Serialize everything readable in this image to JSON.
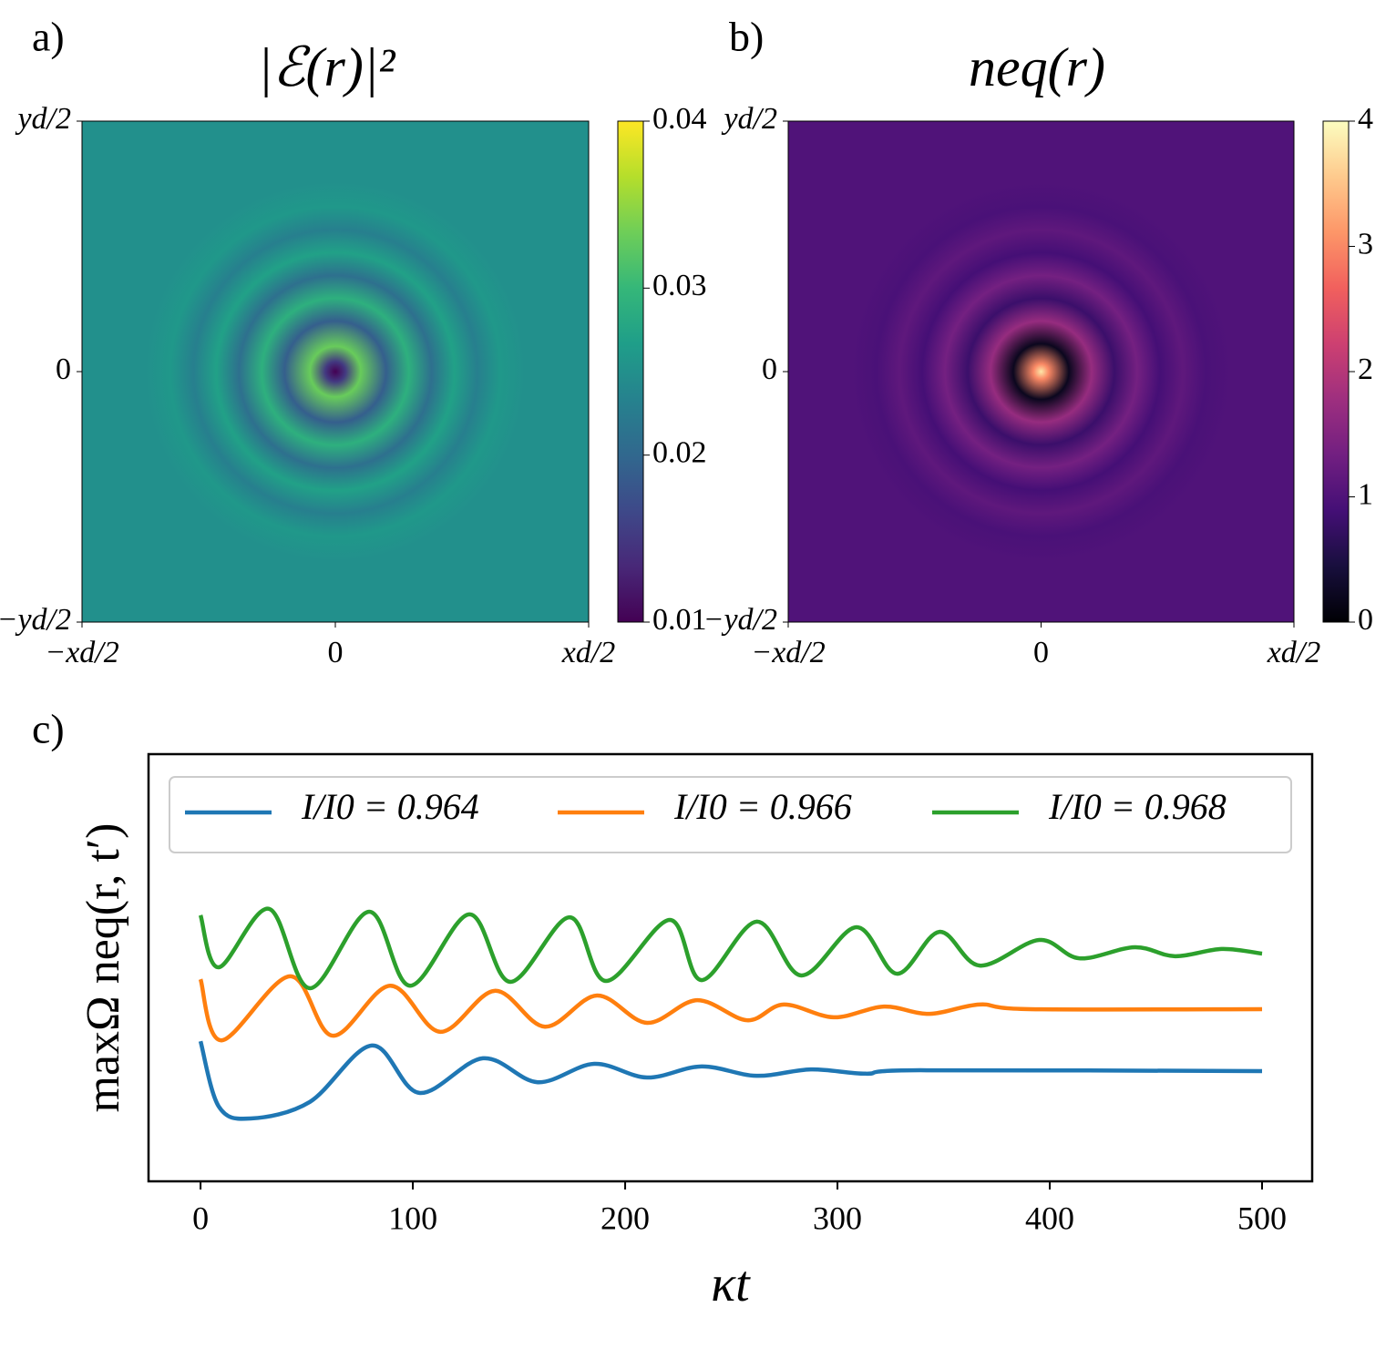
{
  "chart_data": [
    {
      "type": "heatmap",
      "panel_label": "a)",
      "title": "|ℰ(r)|²",
      "xlim": [
        -1,
        1
      ],
      "xticks": [
        {
          "value": -1,
          "label": "−xd/2"
        },
        0,
        {
          "value": 1,
          "label": "xd/2"
        }
      ],
      "ylim": [
        -1,
        1
      ],
      "yticks": [
        {
          "value": -1,
          "label": "−yd/2"
        },
        0,
        {
          "value": 1,
          "label": "yd/2"
        }
      ],
      "colorbar_lim": [
        0.01,
        0.04
      ],
      "colorbar_ticks": [
        0.01,
        0.02,
        0.03,
        0.04
      ],
      "colormap": [
        "#440154",
        "#482878",
        "#3e4989",
        "#31688e",
        "#26828e",
        "#1f9e89",
        "#35b779",
        "#6ece58",
        "#b5de2b",
        "#fde725"
      ],
      "radial_profile": {
        "r": [
          0,
          0.04,
          0.1,
          0.2,
          0.29,
          0.38,
          0.47,
          0.56,
          0.65,
          0.75,
          1.42
        ],
        "values": [
          0.01,
          0.015,
          0.033,
          0.019,
          0.029,
          0.021,
          0.027,
          0.023,
          0.026,
          0.025,
          0.025
        ]
      }
    },
    {
      "type": "heatmap",
      "panel_label": "b)",
      "title": "neq(r)",
      "xlim": [
        -1,
        1
      ],
      "xticks": [
        {
          "value": -1,
          "label": "−xd/2"
        },
        0,
        {
          "value": 1,
          "label": "xd/2"
        }
      ],
      "ylim": [
        -1,
        1
      ],
      "yticks": [
        {
          "value": -1,
          "label": "−yd/2"
        },
        0,
        {
          "value": 1,
          "label": "yd/2"
        }
      ],
      "colorbar_lim": [
        0,
        4
      ],
      "colorbar_ticks": [
        0,
        1,
        2,
        3,
        4
      ],
      "colormap": [
        "#000004",
        "#180f3d",
        "#440f76",
        "#721f81",
        "#9e2f7f",
        "#cd4071",
        "#f1605d",
        "#fd9668",
        "#feca8d",
        "#fcfdbf"
      ],
      "radial_profile": {
        "r": [
          0,
          0.03,
          0.11,
          0.2,
          0.29,
          0.38,
          0.47,
          0.56,
          0.65,
          0.75,
          1.42
        ],
        "values": [
          3.8,
          3.0,
          0.2,
          1.7,
          0.8,
          1.35,
          0.9,
          1.15,
          0.95,
          1.0,
          1.0
        ]
      }
    },
    {
      "type": "line",
      "panel_label": "c)",
      "x_label": "κt",
      "y_label": "maxΩ neq(r, t′)",
      "xlim": [
        -24.5,
        523.6
      ],
      "xticks": [
        0,
        100,
        200,
        300,
        400,
        500
      ],
      "ylim": [
        0,
        1
      ],
      "grid": false,
      "legend": "top",
      "series": [
        {
          "name": "I/I0 = 0.964",
          "color": "#1f77b4",
          "x": [
            0,
            8.6,
            23.6,
            51.5,
            80.7,
            103,
            133,
            158.8,
            185.4,
            210.3,
            236,
            261.8,
            287.6,
            313.3,
            339,
            500
          ],
          "values": [
            0.328,
            0.175,
            0.147,
            0.186,
            0.318,
            0.207,
            0.288,
            0.232,
            0.275,
            0.243,
            0.269,
            0.247,
            0.262,
            0.252,
            0.26,
            0.258
          ]
        },
        {
          "name": "I/I0 = 0.966",
          "color": "#ff7f0e",
          "x": [
            0,
            9.9,
            42.1,
            62.2,
            89.3,
            112.9,
            138.6,
            162.2,
            186.7,
            210.3,
            233.9,
            257.5,
            274.7,
            298.3,
            321.9,
            343.3,
            366.9,
            390.6,
            500
          ],
          "values": [
            0.473,
            0.33,
            0.48,
            0.341,
            0.458,
            0.35,
            0.446,
            0.362,
            0.435,
            0.371,
            0.424,
            0.377,
            0.414,
            0.384,
            0.409,
            0.392,
            0.414,
            0.403,
            0.403
          ]
        },
        {
          "name": "I/I0 = 0.968",
          "color": "#2ca02c",
          "x": [
            0,
            8.6,
            32.2,
            51.5,
            79.4,
            98.7,
            126.6,
            145.9,
            173.8,
            191,
            221,
            236,
            262,
            283,
            309,
            328,
            348,
            367,
            395,
            414,
            440,
            459,
            481,
            500
          ],
          "values": [
            0.623,
            0.501,
            0.638,
            0.452,
            0.631,
            0.458,
            0.625,
            0.467,
            0.618,
            0.469,
            0.612,
            0.471,
            0.608,
            0.482,
            0.595,
            0.486,
            0.584,
            0.505,
            0.565,
            0.522,
            0.548,
            0.527,
            0.544,
            0.533
          ]
        }
      ]
    }
  ]
}
